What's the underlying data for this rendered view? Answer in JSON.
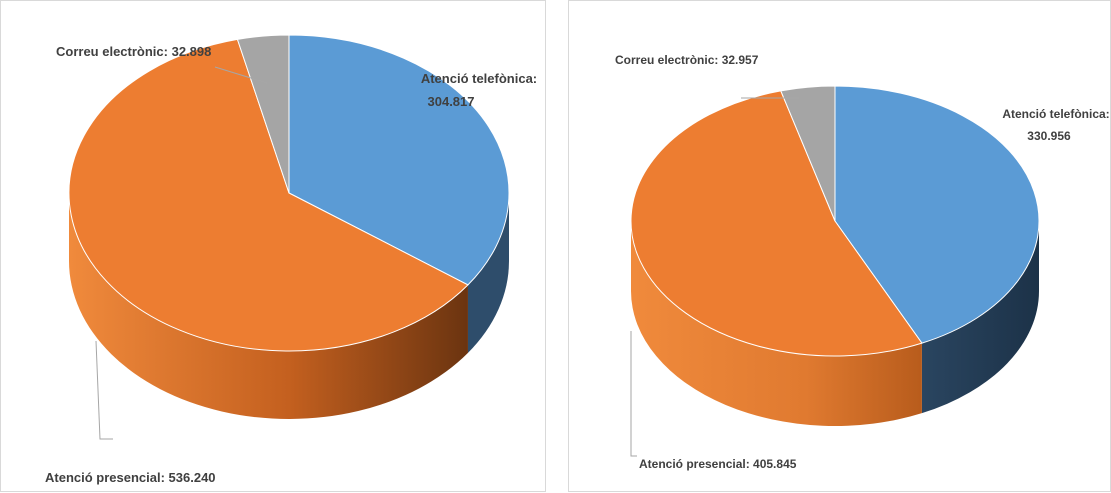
{
  "chart_data": [
    {
      "type": "pie",
      "style": "3d",
      "categories": [
        "Atenció telefònica",
        "Atenció presencial",
        "Correu electrònic"
      ],
      "values": [
        304817,
        536240,
        32898
      ],
      "value_labels": [
        "304.817",
        "536.240",
        "32.898"
      ],
      "colors": [
        "#5b9bd5",
        "#ed7d31",
        "#a5a5a5"
      ],
      "labels": {
        "phone": "Atenció telefònica:",
        "phone_value": "304.817",
        "inperson": "Atenció presencial: 536.240",
        "email": "Correu electrònic:  32.898"
      }
    },
    {
      "type": "pie",
      "style": "3d",
      "categories": [
        "Atenció telefònica",
        "Atenció presencial",
        "Correu electrònic"
      ],
      "values": [
        330956,
        405845,
        32957
      ],
      "value_labels": [
        "330.956",
        "405.845",
        "32.957"
      ],
      "colors": [
        "#5b9bd5",
        "#ed7d31",
        "#a5a5a5"
      ],
      "labels": {
        "phone": "Atenció telefònica:",
        "phone_value": "330.956",
        "inperson": "Atenció presencial: 405.845",
        "email": "Correu electrònic: 32.957"
      }
    }
  ]
}
